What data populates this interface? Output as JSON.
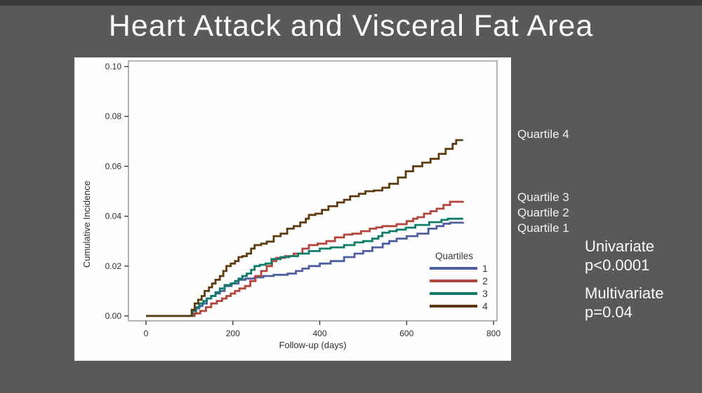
{
  "slide": {
    "title": "Heart Attack and Visceral Fat Area",
    "background_color": "#58595b",
    "panel_color": "#fefefe"
  },
  "chart_data": {
    "type": "line",
    "subtype": "step",
    "title": "",
    "xlabel": "Follow-up (days)",
    "ylabel": "Cumulative Incidence",
    "xlim": [
      0,
      800
    ],
    "ylim": [
      0,
      0.1
    ],
    "x_ticks": [
      0,
      200,
      400,
      600,
      800
    ],
    "y_ticks": [
      0.0,
      0.02,
      0.04,
      0.06,
      0.08,
      0.1
    ],
    "grid": false,
    "frame_color": "#9b9b9b",
    "tick_text_color": "#2f2f2f",
    "legend": {
      "title": "Quartiles",
      "position": "inside-bottom-right",
      "entries": [
        {
          "label": "1",
          "color": "#4d5e9e"
        },
        {
          "label": "2",
          "color": "#b4453d"
        },
        {
          "label": "3",
          "color": "#0f7c6a"
        },
        {
          "label": "4",
          "color": "#5d3b10"
        }
      ]
    },
    "series": [
      {
        "name": "Quartile 1",
        "legend_label": "1",
        "color": "#4d5e9e",
        "points": [
          [
            0,
            0
          ],
          [
            100,
            0
          ],
          [
            108,
            0.001
          ],
          [
            115,
            0.003
          ],
          [
            122,
            0.004
          ],
          [
            130,
            0.005
          ],
          [
            140,
            0.007
          ],
          [
            150,
            0.008
          ],
          [
            160,
            0.009
          ],
          [
            170,
            0.01
          ],
          [
            181,
            0.012
          ],
          [
            197,
            0.013
          ],
          [
            213,
            0.0145
          ],
          [
            229,
            0.015
          ],
          [
            250,
            0.0155
          ],
          [
            270,
            0.016
          ],
          [
            294,
            0.0165
          ],
          [
            326,
            0.017
          ],
          [
            345,
            0.018
          ],
          [
            360,
            0.019
          ],
          [
            375,
            0.02
          ],
          [
            400,
            0.021
          ],
          [
            425,
            0.022
          ],
          [
            456,
            0.0236
          ],
          [
            480,
            0.025
          ],
          [
            500,
            0.026
          ],
          [
            521,
            0.0275
          ],
          [
            545,
            0.029
          ],
          [
            560,
            0.03
          ],
          [
            577,
            0.031
          ],
          [
            600,
            0.032
          ],
          [
            625,
            0.033
          ],
          [
            650,
            0.035
          ],
          [
            669,
            0.036
          ],
          [
            685,
            0.037
          ],
          [
            700,
            0.0374
          ],
          [
            730,
            0.0376
          ]
        ]
      },
      {
        "name": "Quartile 2",
        "legend_label": "2",
        "color": "#b4453d",
        "points": [
          [
            0,
            0
          ],
          [
            103,
            0
          ],
          [
            112,
            0.001
          ],
          [
            125,
            0.002
          ],
          [
            138,
            0.0035
          ],
          [
            150,
            0.005
          ],
          [
            163,
            0.006
          ],
          [
            175,
            0.007
          ],
          [
            185,
            0.008
          ],
          [
            195,
            0.009
          ],
          [
            205,
            0.01
          ],
          [
            215,
            0.011
          ],
          [
            228,
            0.012
          ],
          [
            240,
            0.014
          ],
          [
            252,
            0.016
          ],
          [
            265,
            0.018
          ],
          [
            278,
            0.02
          ],
          [
            290,
            0.022
          ],
          [
            300,
            0.0233
          ],
          [
            320,
            0.024
          ],
          [
            340,
            0.025
          ],
          [
            360,
            0.027
          ],
          [
            375,
            0.0284
          ],
          [
            395,
            0.029
          ],
          [
            415,
            0.03
          ],
          [
            435,
            0.0315
          ],
          [
            456,
            0.0326
          ],
          [
            475,
            0.033
          ],
          [
            495,
            0.034
          ],
          [
            515,
            0.035
          ],
          [
            530,
            0.0355
          ],
          [
            544,
            0.036
          ],
          [
            577,
            0.0368
          ],
          [
            600,
            0.038
          ],
          [
            615,
            0.039
          ],
          [
            625,
            0.0396
          ],
          [
            640,
            0.041
          ],
          [
            655,
            0.042
          ],
          [
            669,
            0.043
          ],
          [
            685,
            0.0445
          ],
          [
            700,
            0.0458
          ],
          [
            730,
            0.046
          ]
        ]
      },
      {
        "name": "Quartile 3",
        "legend_label": "3",
        "color": "#0f7c6a",
        "points": [
          [
            0,
            0
          ],
          [
            100,
            0
          ],
          [
            107,
            0.002
          ],
          [
            115,
            0.0035
          ],
          [
            123,
            0.005
          ],
          [
            132,
            0.006
          ],
          [
            140,
            0.007
          ],
          [
            150,
            0.008
          ],
          [
            160,
            0.0095
          ],
          [
            170,
            0.011
          ],
          [
            181,
            0.0124
          ],
          [
            195,
            0.013
          ],
          [
            205,
            0.014
          ],
          [
            213,
            0.015
          ],
          [
            222,
            0.016
          ],
          [
            232,
            0.017
          ],
          [
            242,
            0.0185
          ],
          [
            250,
            0.02
          ],
          [
            262,
            0.0205
          ],
          [
            275,
            0.021
          ],
          [
            289,
            0.0228
          ],
          [
            310,
            0.0236
          ],
          [
            330,
            0.024
          ],
          [
            350,
            0.025
          ],
          [
            375,
            0.026
          ],
          [
            400,
            0.027
          ],
          [
            425,
            0.0275
          ],
          [
            456,
            0.0284
          ],
          [
            480,
            0.0295
          ],
          [
            500,
            0.03
          ],
          [
            521,
            0.031
          ],
          [
            535,
            0.032
          ],
          [
            544,
            0.0334
          ],
          [
            560,
            0.034
          ],
          [
            577,
            0.0346
          ],
          [
            598,
            0.0354
          ],
          [
            620,
            0.0365
          ],
          [
            652,
            0.0376
          ],
          [
            680,
            0.0385
          ],
          [
            695,
            0.039
          ],
          [
            730,
            0.039
          ]
        ]
      },
      {
        "name": "Quartile 4",
        "legend_label": "4",
        "color": "#5d3b10",
        "points": [
          [
            0,
            0
          ],
          [
            100,
            0
          ],
          [
            105,
            0.0025
          ],
          [
            112,
            0.005
          ],
          [
            120,
            0.0065
          ],
          [
            128,
            0.008
          ],
          [
            135,
            0.01
          ],
          [
            145,
            0.0115
          ],
          [
            152,
            0.013
          ],
          [
            160,
            0.0145
          ],
          [
            170,
            0.016
          ],
          [
            178,
            0.018
          ],
          [
            185,
            0.02
          ],
          [
            195,
            0.021
          ],
          [
            205,
            0.022
          ],
          [
            213,
            0.0236
          ],
          [
            222,
            0.024
          ],
          [
            232,
            0.025
          ],
          [
            242,
            0.027
          ],
          [
            250,
            0.0284
          ],
          [
            265,
            0.029
          ],
          [
            278,
            0.0298
          ],
          [
            294,
            0.032
          ],
          [
            310,
            0.033
          ],
          [
            325,
            0.035
          ],
          [
            340,
            0.036
          ],
          [
            355,
            0.0375
          ],
          [
            368,
            0.039
          ],
          [
            375,
            0.0405
          ],
          [
            390,
            0.041
          ],
          [
            405,
            0.0425
          ],
          [
            420,
            0.044
          ],
          [
            440,
            0.0455
          ],
          [
            456,
            0.0466
          ],
          [
            470,
            0.048
          ],
          [
            490,
            0.049
          ],
          [
            505,
            0.05
          ],
          [
            525,
            0.0503
          ],
          [
            544,
            0.0514
          ],
          [
            560,
            0.053
          ],
          [
            580,
            0.0555
          ],
          [
            598,
            0.058
          ],
          [
            615,
            0.06
          ],
          [
            636,
            0.0615
          ],
          [
            655,
            0.063
          ],
          [
            674,
            0.065
          ],
          [
            690,
            0.067
          ],
          [
            706,
            0.069
          ],
          [
            714,
            0.0705
          ],
          [
            730,
            0.0705
          ]
        ]
      }
    ]
  },
  "annotations": {
    "curve_labels": [
      {
        "id": "q4",
        "text": "Quartile 4"
      },
      {
        "id": "q3",
        "text": "Quartile 3"
      },
      {
        "id": "q2",
        "text": "Quartile 2"
      },
      {
        "id": "q1",
        "text": "Quartile 1"
      }
    ]
  },
  "stats": {
    "univariate": {
      "name": "Univariate",
      "p_value": "p<0.0001"
    },
    "multivariate": {
      "name": "Multivariate",
      "p_value": "p=0.04"
    }
  }
}
